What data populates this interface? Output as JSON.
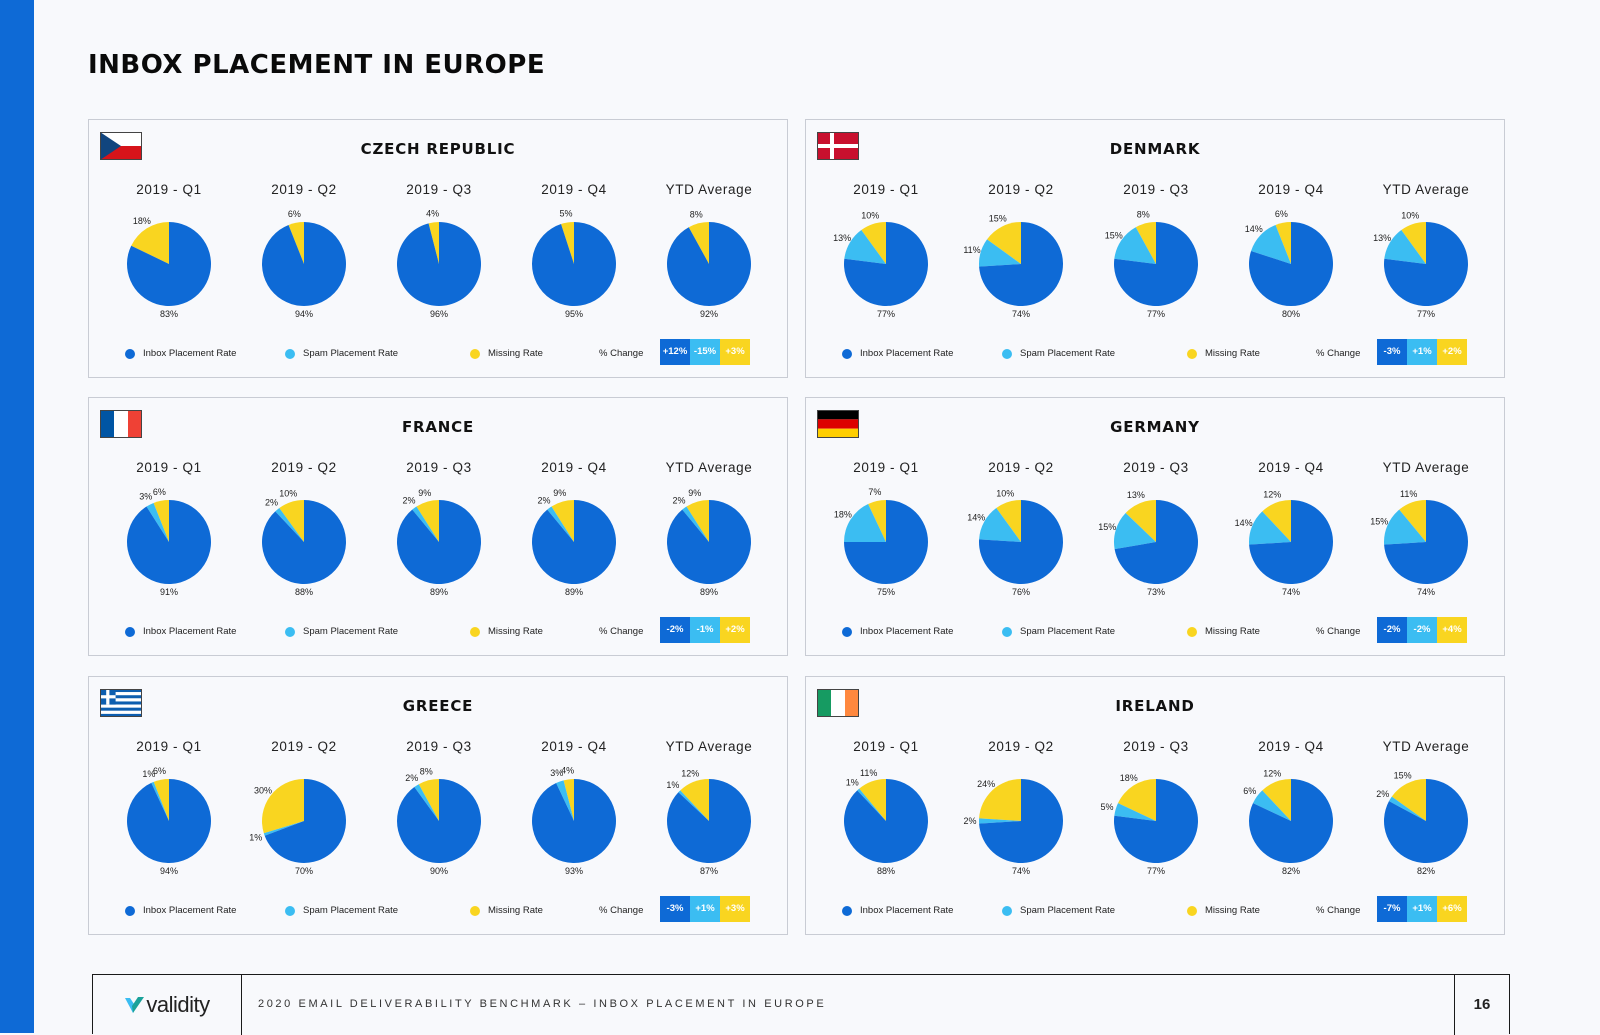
{
  "page_title": "INBOX PLACEMENT IN EUROPE",
  "colors": {
    "inbox": "#0e6ad6",
    "spam": "#3bbdf2",
    "missing": "#f9d520",
    "accent_bar": "#0e6ad6"
  },
  "legend": {
    "inbox": "Inbox Placement Rate",
    "spam": "Spam Placement Rate",
    "missing": "Missing Rate",
    "change": "% Change"
  },
  "quarter_labels": [
    "2019 - Q1",
    "2019 - Q2",
    "2019 - Q3",
    "2019 - Q4",
    "YTD Average"
  ],
  "chart_data": [
    {
      "type": "pie",
      "title": "CZECH REPUBLIC",
      "flag": "czech-flag",
      "categories": [
        "2019 - Q1",
        "2019 - Q2",
        "2019 - Q3",
        "2019 - Q4",
        "YTD Average"
      ],
      "series": [
        {
          "name": "Inbox Placement Rate",
          "values": [
            83,
            94,
            96,
            95,
            92
          ],
          "labels": [
            "83%",
            "94%",
            "96%",
            "95%",
            "92%"
          ]
        },
        {
          "name": "Spam Placement Rate",
          "values": [
            0,
            0,
            0,
            0,
            0
          ],
          "labels": [
            "",
            "",
            "",
            "",
            ""
          ]
        },
        {
          "name": "Missing Rate",
          "values": [
            18,
            6,
            4,
            5,
            8
          ],
          "labels": [
            "18%",
            "6%",
            "4%",
            "5%",
            "8%"
          ]
        }
      ],
      "change": [
        "+12%",
        "-15%",
        "+3%"
      ]
    },
    {
      "type": "pie",
      "title": "DENMARK",
      "flag": "denmark-flag",
      "categories": [
        "2019 - Q1",
        "2019 - Q2",
        "2019 - Q3",
        "2019 - Q4",
        "YTD Average"
      ],
      "series": [
        {
          "name": "Inbox Placement Rate",
          "values": [
            77,
            74,
            77,
            80,
            77
          ],
          "labels": [
            "77%",
            "74%",
            "77%",
            "80%",
            "77%"
          ]
        },
        {
          "name": "Spam Placement Rate",
          "values": [
            13,
            11,
            15,
            14,
            13
          ],
          "labels": [
            "13%",
            "11%",
            "15%",
            "14%",
            "13%"
          ]
        },
        {
          "name": "Missing Rate",
          "values": [
            10,
            15,
            8,
            6,
            10
          ],
          "labels": [
            "10%",
            "15%",
            "8%",
            "6%",
            "10%"
          ]
        }
      ],
      "change": [
        "-3%",
        "+1%",
        "+2%"
      ]
    },
    {
      "type": "pie",
      "title": "FRANCE",
      "flag": "france-flag",
      "categories": [
        "2019 - Q1",
        "2019 - Q2",
        "2019 - Q3",
        "2019 - Q4",
        "YTD Average"
      ],
      "series": [
        {
          "name": "Inbox Placement Rate",
          "values": [
            91,
            88,
            89,
            89,
            89
          ],
          "labels": [
            "91%",
            "88%",
            "89%",
            "89%",
            "89%"
          ]
        },
        {
          "name": "Spam Placement Rate",
          "values": [
            3,
            2,
            2,
            2,
            2
          ],
          "labels": [
            "3%",
            "2%",
            "2%",
            "2%",
            "2%"
          ]
        },
        {
          "name": "Missing Rate",
          "values": [
            6,
            10,
            9,
            9,
            9
          ],
          "labels": [
            "6%",
            "10%",
            "9%",
            "9%",
            "9%"
          ]
        }
      ],
      "change": [
        "-2%",
        "-1%",
        "+2%"
      ]
    },
    {
      "type": "pie",
      "title": "GERMANY",
      "flag": "germany-flag",
      "categories": [
        "2019 - Q1",
        "2019 - Q2",
        "2019 - Q3",
        "2019 - Q4",
        "YTD Average"
      ],
      "series": [
        {
          "name": "Inbox Placement Rate",
          "values": [
            75,
            76,
            73,
            74,
            74
          ],
          "labels": [
            "75%",
            "76%",
            "73%",
            "74%",
            "74%"
          ]
        },
        {
          "name": "Spam Placement Rate",
          "values": [
            18,
            14,
            15,
            14,
            15
          ],
          "labels": [
            "18%",
            "14%",
            "15%",
            "14%",
            "15%"
          ]
        },
        {
          "name": "Missing Rate",
          "values": [
            7,
            10,
            13,
            12,
            11
          ],
          "labels": [
            "7%",
            "10%",
            "13%",
            "12%",
            "11%"
          ]
        }
      ],
      "change": [
        "-2%",
        "-2%",
        "+4%"
      ]
    },
    {
      "type": "pie",
      "title": "GREECE",
      "flag": "greece-flag",
      "categories": [
        "2019 - Q1",
        "2019 - Q2",
        "2019 - Q3",
        "2019 - Q4",
        "YTD Average"
      ],
      "series": [
        {
          "name": "Inbox Placement Rate",
          "values": [
            94,
            70,
            90,
            93,
            87
          ],
          "labels": [
            "94%",
            "70%",
            "90%",
            "93%",
            "87%"
          ]
        },
        {
          "name": "Spam Placement Rate",
          "values": [
            1,
            1,
            2,
            3,
            1
          ],
          "labels": [
            "1%",
            "1%",
            "2%",
            "3%",
            "1%"
          ]
        },
        {
          "name": "Missing Rate",
          "values": [
            6,
            30,
            8,
            4,
            12
          ],
          "labels": [
            "6%",
            "30%",
            "8%",
            "4%",
            "12%"
          ]
        }
      ],
      "change": [
        "-3%",
        "+1%",
        "+3%"
      ]
    },
    {
      "type": "pie",
      "title": "IRELAND",
      "flag": "ireland-flag",
      "categories": [
        "2019 - Q1",
        "2019 - Q2",
        "2019 - Q3",
        "2019 - Q4",
        "YTD Average"
      ],
      "series": [
        {
          "name": "Inbox Placement Rate",
          "values": [
            88,
            74,
            77,
            82,
            82
          ],
          "labels": [
            "88%",
            "74%",
            "77%",
            "82%",
            "82%"
          ]
        },
        {
          "name": "Spam Placement Rate",
          "values": [
            1,
            2,
            5,
            6,
            2
          ],
          "labels": [
            "1%",
            "2%",
            "5%",
            "6%",
            "2%"
          ]
        },
        {
          "name": "Missing Rate",
          "values": [
            11,
            24,
            18,
            12,
            15
          ],
          "labels": [
            "11%",
            "24%",
            "18%",
            "12%",
            "15%"
          ]
        }
      ],
      "change": [
        "-7%",
        "+1%",
        "+6%"
      ]
    }
  ],
  "footer": {
    "logo_text": "validity",
    "text": "2020 EMAIL DELIVERABILITY BENCHMARK – INBOX PLACEMENT IN EUROPE",
    "page_number": "16"
  }
}
